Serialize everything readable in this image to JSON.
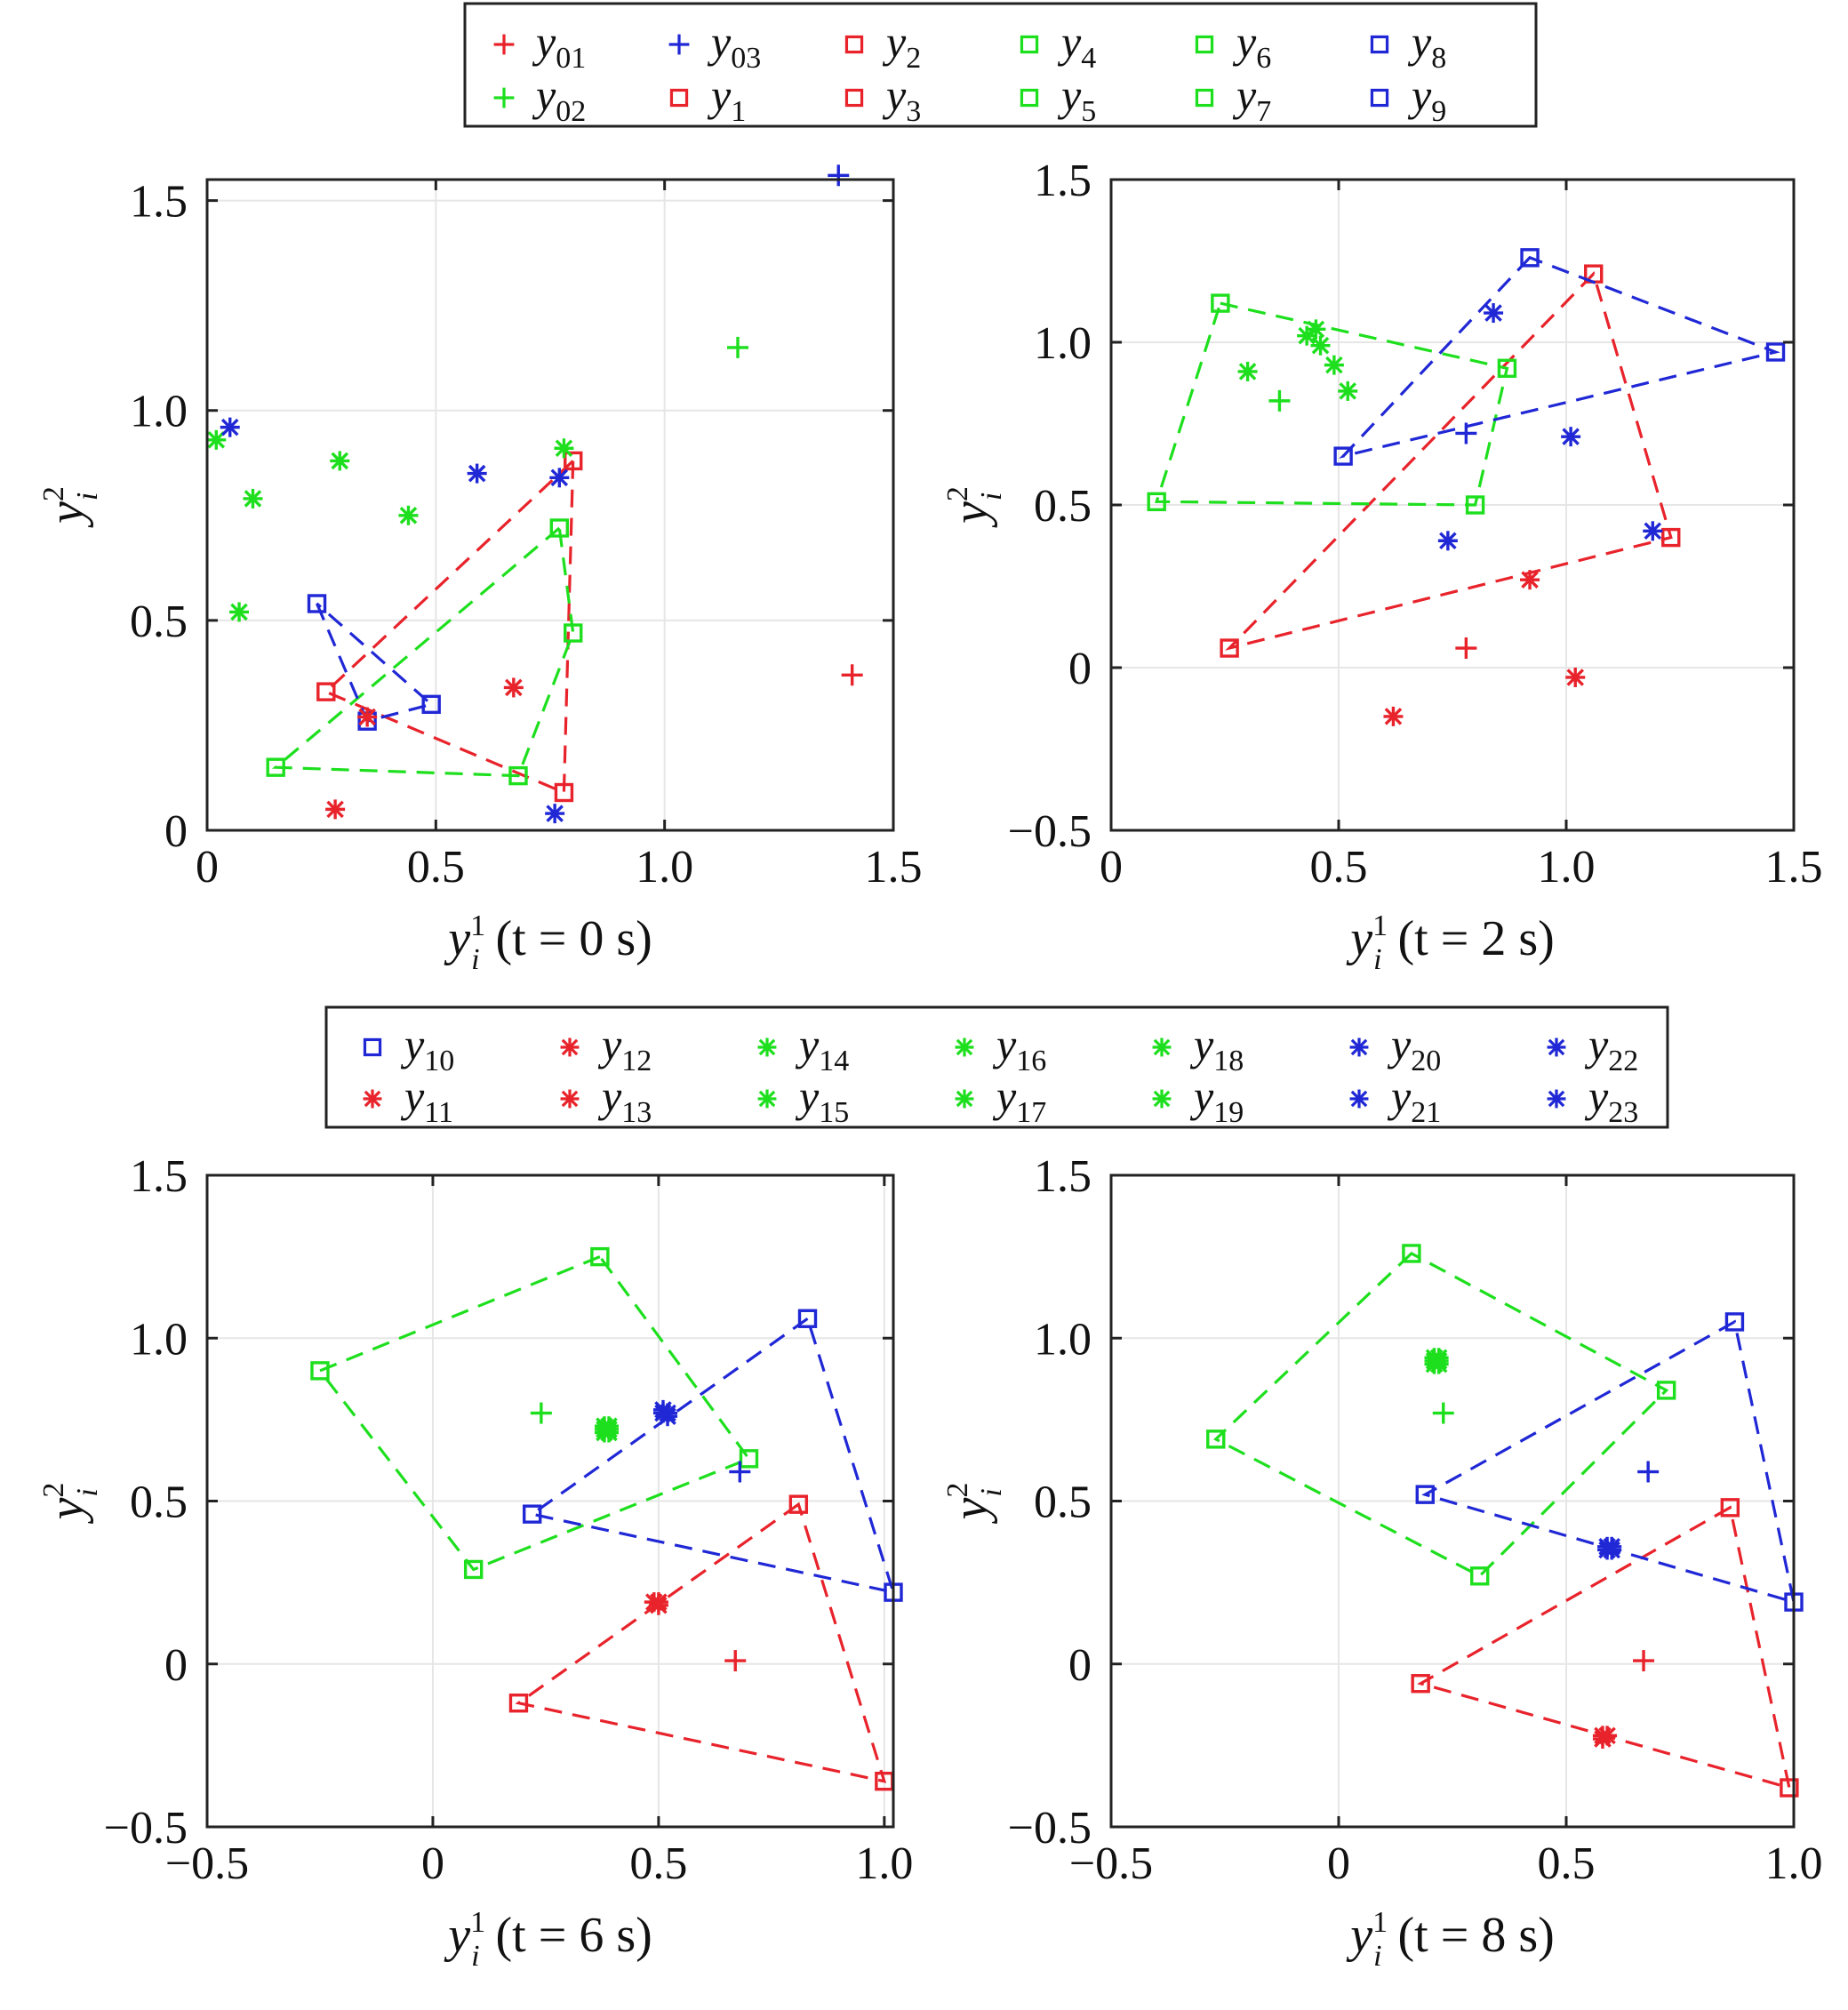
{
  "colors": {
    "red": "#e8232b",
    "green": "#1ddf1d",
    "blue": "#2028d6",
    "grid": "#e6e6e6",
    "axis": "#222222"
  },
  "legends": [
    {
      "columns": 6,
      "entries": [
        {
          "base": "y",
          "sub": "01",
          "color": "red",
          "marker": "plus"
        },
        {
          "base": "y",
          "sub": "03",
          "color": "blue",
          "marker": "plus"
        },
        {
          "base": "y",
          "sub": "2",
          "color": "red",
          "marker": "square"
        },
        {
          "base": "y",
          "sub": "4",
          "color": "green",
          "marker": "square"
        },
        {
          "base": "y",
          "sub": "6",
          "color": "green",
          "marker": "square"
        },
        {
          "base": "y",
          "sub": "8",
          "color": "blue",
          "marker": "square"
        },
        {
          "base": "y",
          "sub": "02",
          "color": "green",
          "marker": "plus"
        },
        {
          "base": "y",
          "sub": "1",
          "color": "red",
          "marker": "square"
        },
        {
          "base": "y",
          "sub": "3",
          "color": "red",
          "marker": "square"
        },
        {
          "base": "y",
          "sub": "5",
          "color": "green",
          "marker": "square"
        },
        {
          "base": "y",
          "sub": "7",
          "color": "green",
          "marker": "square"
        },
        {
          "base": "y",
          "sub": "9",
          "color": "blue",
          "marker": "square"
        }
      ]
    },
    {
      "columns": 7,
      "entries": [
        {
          "base": "y",
          "sub": "10",
          "color": "blue",
          "marker": "square"
        },
        {
          "base": "y",
          "sub": "12",
          "color": "red",
          "marker": "star"
        },
        {
          "base": "y",
          "sub": "14",
          "color": "green",
          "marker": "star"
        },
        {
          "base": "y",
          "sub": "16",
          "color": "green",
          "marker": "star"
        },
        {
          "base": "y",
          "sub": "18",
          "color": "green",
          "marker": "star"
        },
        {
          "base": "y",
          "sub": "20",
          "color": "blue",
          "marker": "star"
        },
        {
          "base": "y",
          "sub": "22",
          "color": "blue",
          "marker": "star"
        },
        {
          "base": "y",
          "sub": "11",
          "color": "red",
          "marker": "star"
        },
        {
          "base": "y",
          "sub": "13",
          "color": "red",
          "marker": "star"
        },
        {
          "base": "y",
          "sub": "15",
          "color": "green",
          "marker": "star"
        },
        {
          "base": "y",
          "sub": "17",
          "color": "green",
          "marker": "star"
        },
        {
          "base": "y",
          "sub": "19",
          "color": "green",
          "marker": "star"
        },
        {
          "base": "y",
          "sub": "21",
          "color": "blue",
          "marker": "star"
        },
        {
          "base": "y",
          "sub": "23",
          "color": "blue",
          "marker": "star"
        }
      ]
    }
  ],
  "chart_data": [
    {
      "type": "scatter",
      "xlabel": {
        "base": "y",
        "sup": "1",
        "sub": "i",
        "rest": " (t = 0 s)"
      },
      "ylabel": {
        "base": "y",
        "sup": "2",
        "sub": "i"
      },
      "xlim": [
        0,
        1.5
      ],
      "ylim": [
        0,
        1.55
      ],
      "xticks": [
        0,
        0.5,
        1.0,
        1.5
      ],
      "xtick_labels": [
        "0",
        "0.5",
        "1.0",
        "1.5"
      ],
      "yticks": [
        0,
        0.5,
        1.0,
        1.5
      ],
      "ytick_labels": [
        "0",
        "0.5",
        "1.0",
        "1.5"
      ],
      "grid": true,
      "polygons": [
        {
          "color": "red",
          "points": [
            [
              0.8,
              0.88
            ],
            [
              0.26,
              0.33
            ],
            [
              0.78,
              0.09
            ]
          ]
        },
        {
          "color": "green",
          "points": [
            [
              0.77,
              0.72
            ],
            [
              0.15,
              0.15
            ],
            [
              0.68,
              0.13
            ],
            [
              0.8,
              0.47
            ]
          ]
        },
        {
          "color": "blue",
          "points": [
            [
              0.24,
              0.54
            ],
            [
              0.35,
              0.26
            ],
            [
              0.49,
              0.3
            ]
          ]
        }
      ],
      "points": [
        {
          "color": "red",
          "marker": "plus",
          "x": 1.41,
          "y": 0.37
        },
        {
          "color": "green",
          "marker": "plus",
          "x": 1.16,
          "y": 1.15
        },
        {
          "color": "blue",
          "marker": "plus",
          "x": 1.38,
          "y": 1.56
        },
        {
          "color": "red",
          "marker": "star",
          "x": 0.28,
          "y": 0.05
        },
        {
          "color": "red",
          "marker": "star",
          "x": 0.67,
          "y": 0.34
        },
        {
          "color": "red",
          "marker": "star",
          "x": 0.35,
          "y": 0.27
        },
        {
          "color": "green",
          "marker": "star",
          "x": 0.02,
          "y": 0.93
        },
        {
          "color": "green",
          "marker": "star",
          "x": 0.1,
          "y": 0.79
        },
        {
          "color": "green",
          "marker": "star",
          "x": 0.29,
          "y": 0.88
        },
        {
          "color": "green",
          "marker": "star",
          "x": 0.44,
          "y": 0.75
        },
        {
          "color": "green",
          "marker": "star",
          "x": 0.07,
          "y": 0.52
        },
        {
          "color": "green",
          "marker": "star",
          "x": 0.78,
          "y": 0.91
        },
        {
          "color": "blue",
          "marker": "star",
          "x": 0.05,
          "y": 0.96
        },
        {
          "color": "blue",
          "marker": "star",
          "x": 0.59,
          "y": 0.85
        },
        {
          "color": "blue",
          "marker": "star",
          "x": 0.77,
          "y": 0.84
        },
        {
          "color": "blue",
          "marker": "star",
          "x": 0.76,
          "y": 0.04
        }
      ]
    },
    {
      "type": "scatter",
      "xlabel": {
        "base": "y",
        "sup": "1",
        "sub": "i",
        "rest": " (t = 2 s)"
      },
      "ylabel": {
        "base": "y",
        "sup": "2",
        "sub": "i"
      },
      "xlim": [
        0,
        1.5
      ],
      "ylim": [
        -0.5,
        1.5
      ],
      "xticks": [
        0,
        0.5,
        1.0,
        1.5
      ],
      "xtick_labels": [
        "0",
        "0.5",
        "1.0",
        "1.5"
      ],
      "yticks": [
        -0.5,
        0,
        0.5,
        1.0,
        1.5
      ],
      "ytick_labels": [
        "−0.5",
        "0",
        "0.5",
        "1.0",
        "1.5"
      ],
      "grid": true,
      "polygons": [
        {
          "color": "red",
          "points": [
            [
              1.06,
              1.21
            ],
            [
              0.26,
              0.06
            ],
            [
              1.23,
              0.4
            ]
          ]
        },
        {
          "color": "green",
          "points": [
            [
              0.24,
              1.12
            ],
            [
              0.87,
              0.92
            ],
            [
              0.8,
              0.5
            ],
            [
              0.1,
              0.51
            ]
          ]
        },
        {
          "color": "blue",
          "points": [
            [
              0.92,
              1.26
            ],
            [
              0.51,
              0.65
            ],
            [
              1.46,
              0.97
            ]
          ]
        }
      ],
      "points": [
        {
          "color": "red",
          "marker": "plus",
          "x": 0.78,
          "y": 0.06
        },
        {
          "color": "green",
          "marker": "plus",
          "x": 0.37,
          "y": 0.82
        },
        {
          "color": "blue",
          "marker": "plus",
          "x": 0.78,
          "y": 0.72
        },
        {
          "color": "red",
          "marker": "star",
          "x": 0.62,
          "y": -0.15
        },
        {
          "color": "red",
          "marker": "star",
          "x": 0.92,
          "y": 0.27
        },
        {
          "color": "red",
          "marker": "star",
          "x": 1.02,
          "y": -0.03
        },
        {
          "color": "green",
          "marker": "star",
          "x": 0.3,
          "y": 0.91
        },
        {
          "color": "green",
          "marker": "star",
          "x": 0.43,
          "y": 1.02
        },
        {
          "color": "green",
          "marker": "star",
          "x": 0.45,
          "y": 1.04
        },
        {
          "color": "green",
          "marker": "star",
          "x": 0.46,
          "y": 0.99
        },
        {
          "color": "green",
          "marker": "star",
          "x": 0.49,
          "y": 0.93
        },
        {
          "color": "green",
          "marker": "star",
          "x": 0.52,
          "y": 0.85
        },
        {
          "color": "blue",
          "marker": "star",
          "x": 0.84,
          "y": 1.09
        },
        {
          "color": "blue",
          "marker": "star",
          "x": 0.74,
          "y": 0.39
        },
        {
          "color": "blue",
          "marker": "star",
          "x": 1.01,
          "y": 0.71
        },
        {
          "color": "blue",
          "marker": "star",
          "x": 1.19,
          "y": 0.42
        }
      ]
    },
    {
      "type": "scatter",
      "xlabel": {
        "base": "y",
        "sup": "1",
        "sub": "i",
        "rest": " (t = 6 s)"
      },
      "ylabel": {
        "base": "y",
        "sup": "2",
        "sub": "i"
      },
      "xlim": [
        -0.5,
        1.02
      ],
      "ylim": [
        -0.5,
        1.5
      ],
      "xticks": [
        -0.5,
        0,
        0.5,
        1.0
      ],
      "xtick_labels": [
        "−0.5",
        "0",
        "0.5",
        "1.0"
      ],
      "yticks": [
        -0.5,
        0,
        0.5,
        1.0,
        1.5
      ],
      "ytick_labels": [
        "−0.5",
        "0",
        "0.5",
        "1.0",
        "1.5"
      ],
      "grid": true,
      "polygons": [
        {
          "color": "red",
          "points": [
            [
              0.81,
              0.49
            ],
            [
              0.19,
              -0.12
            ],
            [
              1.0,
              -0.36
            ]
          ]
        },
        {
          "color": "green",
          "points": [
            [
              0.37,
              1.25
            ],
            [
              -0.25,
              0.9
            ],
            [
              0.09,
              0.29
            ],
            [
              0.7,
              0.63
            ]
          ]
        },
        {
          "color": "blue",
          "points": [
            [
              0.83,
              1.06
            ],
            [
              0.22,
              0.46
            ],
            [
              1.02,
              0.22
            ]
          ]
        }
      ],
      "points": [
        {
          "color": "red",
          "marker": "plus",
          "x": 0.67,
          "y": 0.01
        },
        {
          "color": "green",
          "marker": "plus",
          "x": 0.24,
          "y": 0.77
        },
        {
          "color": "blue",
          "marker": "plus",
          "x": 0.68,
          "y": 0.59
        },
        {
          "color": "red",
          "marker": "star",
          "x": 0.49,
          "y": 0.19
        },
        {
          "color": "red",
          "marker": "star",
          "x": 0.5,
          "y": 0.18
        },
        {
          "color": "red",
          "marker": "star",
          "x": 0.5,
          "y": 0.19
        },
        {
          "color": "green",
          "marker": "star",
          "x": 0.38,
          "y": 0.72
        },
        {
          "color": "green",
          "marker": "star",
          "x": 0.39,
          "y": 0.73
        },
        {
          "color": "green",
          "marker": "star",
          "x": 0.38,
          "y": 0.71
        },
        {
          "color": "green",
          "marker": "star",
          "x": 0.39,
          "y": 0.72
        },
        {
          "color": "green",
          "marker": "star",
          "x": 0.38,
          "y": 0.73
        },
        {
          "color": "green",
          "marker": "star",
          "x": 0.39,
          "y": 0.71
        },
        {
          "color": "blue",
          "marker": "star",
          "x": 0.51,
          "y": 0.78
        },
        {
          "color": "blue",
          "marker": "star",
          "x": 0.52,
          "y": 0.76
        },
        {
          "color": "blue",
          "marker": "star",
          "x": 0.51,
          "y": 0.77
        },
        {
          "color": "blue",
          "marker": "star",
          "x": 0.52,
          "y": 0.77
        }
      ]
    },
    {
      "type": "scatter",
      "xlabel": {
        "base": "y",
        "sup": "1",
        "sub": "i",
        "rest": " (t = 8 s)"
      },
      "ylabel": {
        "base": "y",
        "sup": "2",
        "sub": "i"
      },
      "xlim": [
        -0.5,
        1.0
      ],
      "ylim": [
        -0.5,
        1.5
      ],
      "xticks": [
        -0.5,
        0,
        0.5,
        1.0
      ],
      "xtick_labels": [
        "−0.5",
        "0",
        "0.5",
        "1.0"
      ],
      "yticks": [
        -0.5,
        0,
        0.5,
        1.0,
        1.5
      ],
      "ytick_labels": [
        "−0.5",
        "0",
        "0.5",
        "1.0",
        "1.5"
      ],
      "grid": true,
      "polygons": [
        {
          "color": "red",
          "points": [
            [
              0.86,
              0.48
            ],
            [
              0.18,
              -0.06
            ],
            [
              0.99,
              -0.38
            ]
          ]
        },
        {
          "color": "green",
          "points": [
            [
              0.16,
              1.26
            ],
            [
              -0.27,
              0.69
            ],
            [
              0.31,
              0.27
            ],
            [
              0.72,
              0.84
            ]
          ]
        },
        {
          "color": "blue",
          "points": [
            [
              0.87,
              1.05
            ],
            [
              0.19,
              0.52
            ],
            [
              1.0,
              0.19
            ]
          ]
        }
      ],
      "points": [
        {
          "color": "red",
          "marker": "plus",
          "x": 0.67,
          "y": 0.01
        },
        {
          "color": "green",
          "marker": "plus",
          "x": 0.23,
          "y": 0.77
        },
        {
          "color": "blue",
          "marker": "plus",
          "x": 0.68,
          "y": 0.59
        },
        {
          "color": "red",
          "marker": "star",
          "x": 0.58,
          "y": -0.23
        },
        {
          "color": "red",
          "marker": "star",
          "x": 0.59,
          "y": -0.22
        },
        {
          "color": "red",
          "marker": "star",
          "x": 0.58,
          "y": -0.22
        },
        {
          "color": "green",
          "marker": "star",
          "x": 0.21,
          "y": 0.93
        },
        {
          "color": "green",
          "marker": "star",
          "x": 0.22,
          "y": 0.94
        },
        {
          "color": "green",
          "marker": "star",
          "x": 0.21,
          "y": 0.92
        },
        {
          "color": "green",
          "marker": "star",
          "x": 0.22,
          "y": 0.93
        },
        {
          "color": "green",
          "marker": "star",
          "x": 0.21,
          "y": 0.94
        },
        {
          "color": "green",
          "marker": "star",
          "x": 0.22,
          "y": 0.92
        },
        {
          "color": "blue",
          "marker": "star",
          "x": 0.59,
          "y": 0.35
        },
        {
          "color": "blue",
          "marker": "star",
          "x": 0.6,
          "y": 0.36
        },
        {
          "color": "blue",
          "marker": "star",
          "x": 0.59,
          "y": 0.36
        },
        {
          "color": "blue",
          "marker": "star",
          "x": 0.6,
          "y": 0.35
        }
      ]
    }
  ]
}
